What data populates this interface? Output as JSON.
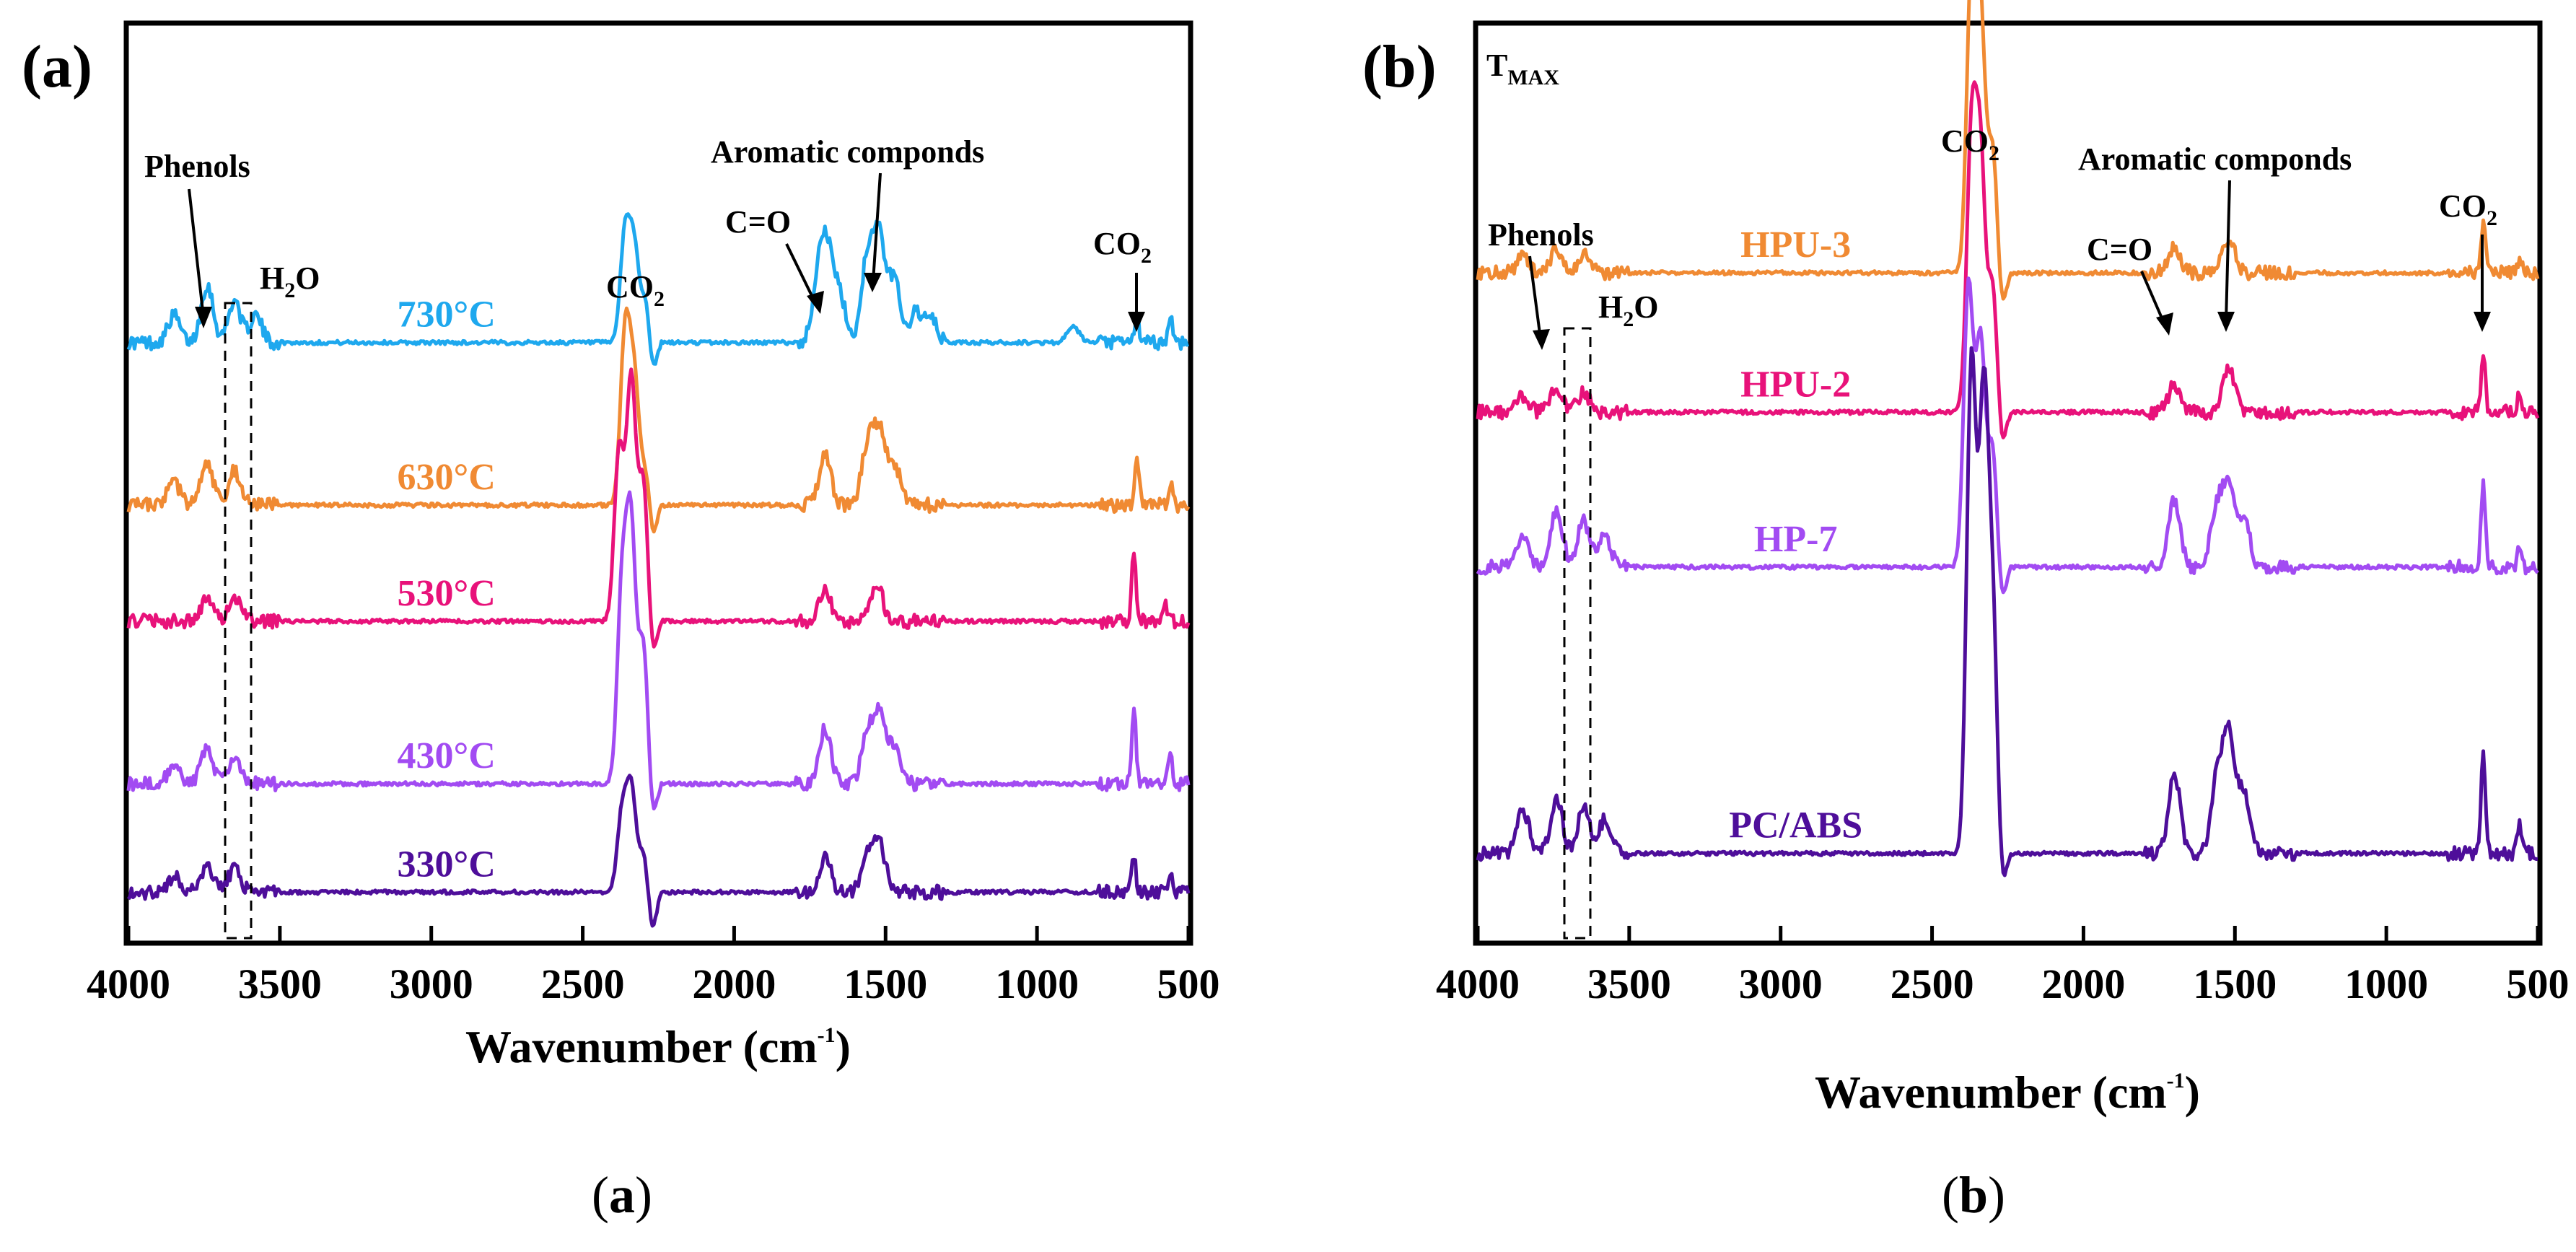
{
  "chart_data": [
    {
      "panel": "(a)",
      "caption": "(a)",
      "type": "line",
      "xlabel": "Wavenumber (cm",
      "xlabel_sup": "-1",
      "xlabel_close": ")",
      "xlim": [
        4000,
        500
      ],
      "x_reversed": true,
      "xticks": [
        4000,
        3500,
        3000,
        2500,
        2000,
        1500,
        1000,
        500
      ],
      "grid": false,
      "offset_stacked": true,
      "y_axis_ticks_shown": false,
      "series": [
        {
          "name": "730°C",
          "color": "#1EA8EE",
          "baseline": 7.6,
          "label_at": 2950,
          "peaks": [
            [
              3850,
              0.35
            ],
            [
              3740,
              0.75
            ],
            [
              3650,
              0.55
            ],
            [
              3580,
              0.35
            ],
            [
              2360,
              1.4
            ],
            [
              2330,
              1.2
            ],
            [
              2290,
              0.6
            ],
            [
              1720,
              0.9
            ],
            [
              1690,
              1.0
            ],
            [
              1650,
              0.55
            ],
            [
              1560,
              1.1
            ],
            [
              1520,
              1.3
            ],
            [
              1470,
              0.8
            ],
            [
              1400,
              0.4
            ],
            [
              1350,
              0.3
            ],
            [
              880,
              0.2
            ],
            [
              670,
              0.35
            ],
            [
              560,
              0.35
            ]
          ]
        },
        {
          "name": "630°C",
          "color": "#F08A33",
          "baseline": 5.5,
          "label_at": 2950,
          "peaks": [
            [
              3850,
              0.3
            ],
            [
              3740,
              0.55
            ],
            [
              3650,
              0.45
            ],
            [
              2360,
              2.2
            ],
            [
              2330,
              1.6
            ],
            [
              2290,
              0.5
            ],
            [
              1700,
              0.65
            ],
            [
              1560,
              0.75
            ],
            [
              1520,
              0.95
            ],
            [
              1470,
              0.5
            ],
            [
              670,
              0.65
            ],
            [
              560,
              0.3
            ]
          ]
        },
        {
          "name": "530°C",
          "color": "#E8127A",
          "baseline": 4.0,
          "label_at": 2950,
          "peaks": [
            [
              3740,
              0.3
            ],
            [
              3650,
              0.3
            ],
            [
              2380,
              2.2
            ],
            [
              2340,
              3.1
            ],
            [
              2300,
              1.8
            ],
            [
              1700,
              0.4
            ],
            [
              1530,
              0.5
            ],
            [
              680,
              0.9
            ],
            [
              580,
              0.25
            ]
          ]
        },
        {
          "name": "430°C",
          "color": "#A24BF2",
          "baseline": 1.9,
          "label_at": 2950,
          "peaks": [
            [
              3850,
              0.25
            ],
            [
              3740,
              0.45
            ],
            [
              3650,
              0.35
            ],
            [
              2370,
              2.5
            ],
            [
              2340,
              3.2
            ],
            [
              2300,
              1.8
            ],
            [
              1700,
              0.7
            ],
            [
              1560,
              0.6
            ],
            [
              1520,
              0.85
            ],
            [
              1470,
              0.5
            ],
            [
              680,
              1.0
            ],
            [
              560,
              0.35
            ]
          ]
        },
        {
          "name": "330°C",
          "color": "#4E0E9A",
          "baseline": 0.5,
          "label_at": 2950,
          "peaks": [
            [
              3850,
              0.2
            ],
            [
              3740,
              0.35
            ],
            [
              3650,
              0.3
            ],
            [
              2370,
              1.0
            ],
            [
              2340,
              1.3
            ],
            [
              2300,
              0.5
            ],
            [
              1700,
              0.45
            ],
            [
              1560,
              0.5
            ],
            [
              1520,
              0.6
            ],
            [
              680,
              0.45
            ],
            [
              560,
              0.2
            ]
          ]
        }
      ],
      "annotations": {
        "phenols": "Phenols",
        "h2o_main": "H",
        "h2o_sub": "2",
        "h2o_tail": "O",
        "co2_main": "CO",
        "co2_sub": "2",
        "co2_right_main": "CO",
        "co2_right_sub": "2",
        "co": "C=O",
        "aromatic": "Aromatic componds"
      }
    },
    {
      "panel": "(b)",
      "caption": "(b)",
      "type": "line",
      "title_main": "T",
      "title_sub": "MAX",
      "xlabel": "Wavenumber (cm",
      "xlabel_sup": "-1",
      "xlabel_close": ")",
      "xlim": [
        4000,
        500
      ],
      "x_reversed": true,
      "xticks": [
        4000,
        3500,
        3000,
        2500,
        2000,
        1500,
        1000,
        500
      ],
      "grid": false,
      "offset_stacked": true,
      "y_axis_ticks_shown": false,
      "series": [
        {
          "name": "HPU-3",
          "color": "#F08A33",
          "baseline": 8.5,
          "label_at": 2950,
          "peaks": [
            [
              3850,
              0.2
            ],
            [
              3740,
              0.3
            ],
            [
              3650,
              0.25
            ],
            [
              2370,
              3.8
            ],
            [
              2340,
              3.2
            ],
            [
              2300,
              1.6
            ],
            [
              1700,
              0.35
            ],
            [
              1520,
              0.45
            ],
            [
              680,
              0.65
            ],
            [
              560,
              0.2
            ]
          ]
        },
        {
          "name": "HPU-2",
          "color": "#E8127A",
          "baseline": 6.7,
          "label_at": 2950,
          "peaks": [
            [
              3850,
              0.2
            ],
            [
              3740,
              0.3
            ],
            [
              3650,
              0.25
            ],
            [
              2370,
              3.5
            ],
            [
              2340,
              3.2
            ],
            [
              2300,
              1.6
            ],
            [
              1700,
              0.35
            ],
            [
              1520,
              0.55
            ],
            [
              680,
              0.7
            ],
            [
              560,
              0.25
            ]
          ]
        },
        {
          "name": "HP-7",
          "color": "#A24BF2",
          "baseline": 4.7,
          "label_at": 2950,
          "peaks": [
            [
              3850,
              0.4
            ],
            [
              3740,
              0.75
            ],
            [
              3650,
              0.6
            ],
            [
              3580,
              0.4
            ],
            [
              2380,
              3.6
            ],
            [
              2340,
              2.9
            ],
            [
              2300,
              1.5
            ],
            [
              1700,
              0.85
            ],
            [
              1560,
              0.75
            ],
            [
              1520,
              1.0
            ],
            [
              1470,
              0.6
            ],
            [
              680,
              1.1
            ],
            [
              560,
              0.3
            ]
          ]
        },
        {
          "name": "PC/ABS",
          "color": "#4E0E9A",
          "baseline": 1.0,
          "label_at": 2950,
          "peaks": [
            [
              3850,
              0.55
            ],
            [
              3740,
              0.7
            ],
            [
              3650,
              0.6
            ],
            [
              3580,
              0.45
            ],
            [
              2370,
              6.3
            ],
            [
              2330,
              5.6
            ],
            [
              2300,
              3.0
            ],
            [
              1700,
              1.0
            ],
            [
              1560,
              0.9
            ],
            [
              1520,
              1.5
            ],
            [
              1470,
              0.8
            ],
            [
              680,
              1.3
            ],
            [
              560,
              0.35
            ]
          ]
        }
      ],
      "annotations": {
        "phenols": "Phenols",
        "h2o_main": "H",
        "h2o_sub": "2",
        "h2o_tail": "O",
        "co2_main": "CO",
        "co2_sub": "2",
        "co2_right_main": "CO",
        "co2_right_sub": "2",
        "co": "C=O",
        "aromatic": "Aromatic componds"
      }
    }
  ]
}
